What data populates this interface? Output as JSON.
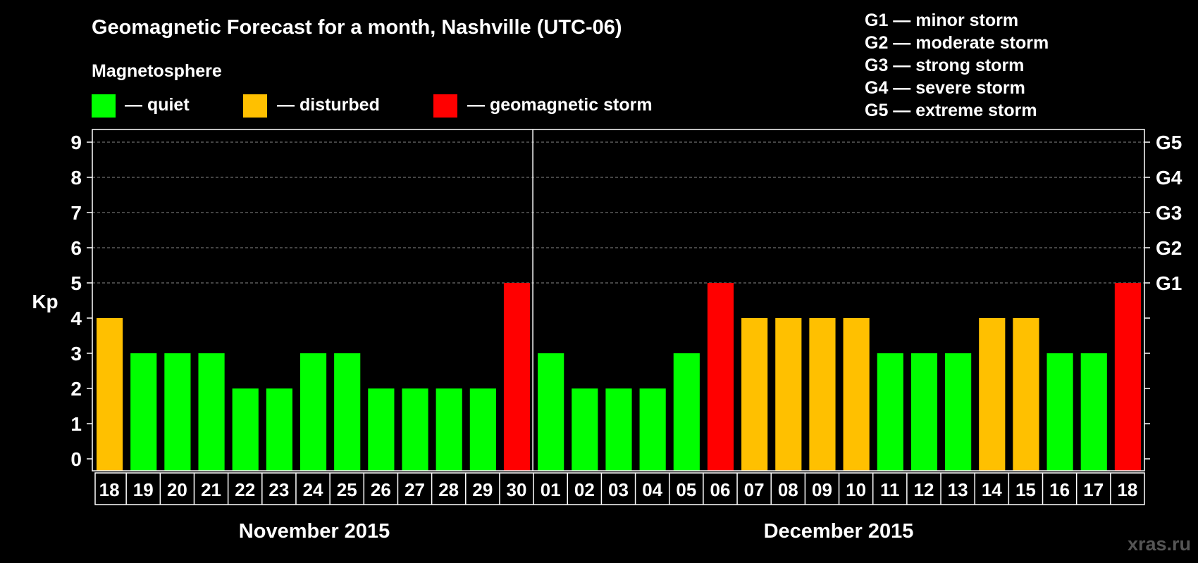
{
  "title": "Geomagnetic Forecast for a month, Nashville (UTC-06)",
  "legend": {
    "heading": "Magnetosphere",
    "items": [
      {
        "label": "— quiet",
        "color": "#00ff00"
      },
      {
        "label": "— disturbed",
        "color": "#ffc000"
      },
      {
        "label": "— geomagnetic storm",
        "color": "#ff0000"
      }
    ]
  },
  "storm_legend": [
    "G1 — minor storm",
    "G2 — moderate storm",
    "G3 — strong storm",
    "G4 — severe storm",
    "G5 — extreme storm"
  ],
  "watermark": "xras.ru",
  "chart_data": {
    "type": "bar",
    "title": "Geomagnetic Forecast for a month, Nashville (UTC-06)",
    "ylabel": "Kp",
    "ylim": [
      0,
      9
    ],
    "yticks": [
      "0",
      "1",
      "2",
      "3",
      "4",
      "5",
      "6",
      "7",
      "8",
      "9"
    ],
    "right_ticks": [
      {
        "value": 5,
        "label": "G1"
      },
      {
        "value": 6,
        "label": "G2"
      },
      {
        "value": 7,
        "label": "G3"
      },
      {
        "value": 8,
        "label": "G4"
      },
      {
        "value": 9,
        "label": "G5"
      }
    ],
    "months": [
      "November 2015",
      "December 2015"
    ],
    "categories": [
      "18",
      "19",
      "20",
      "21",
      "22",
      "23",
      "24",
      "25",
      "26",
      "27",
      "28",
      "29",
      "30",
      "01",
      "02",
      "03",
      "04",
      "05",
      "06",
      "07",
      "08",
      "09",
      "10",
      "11",
      "12",
      "13",
      "14",
      "15",
      "16",
      "17",
      "18"
    ],
    "values": [
      4,
      3,
      3,
      3,
      2,
      2,
      3,
      3,
      2,
      2,
      2,
      2,
      5,
      3,
      2,
      2,
      2,
      3,
      5,
      4,
      4,
      4,
      4,
      3,
      3,
      3,
      4,
      4,
      3,
      3,
      5
    ],
    "month_split_after_index": 12,
    "colors": {
      "quiet": "#00ff00",
      "disturbed": "#ffc000",
      "storm": "#ff0000"
    }
  }
}
